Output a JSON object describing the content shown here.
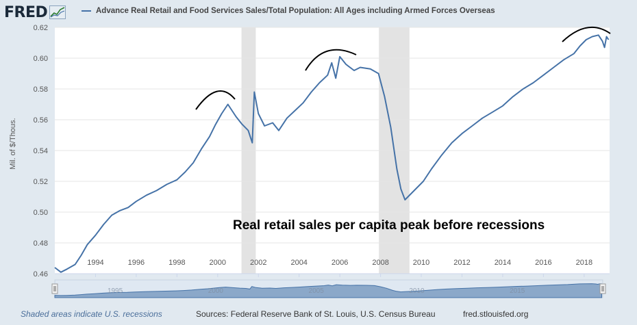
{
  "logo": {
    "text": "FRED",
    "icon": "fred-graph-icon"
  },
  "legend": {
    "label": "Advance Real Retail and Food Services Sales/Total Population: All Ages including Armed Forces Overseas",
    "color": "#4572a7"
  },
  "annotation": "Real retail sales per capita peak before recessions",
  "footer": {
    "recession_note": "Shaded areas indicate U.S. recessions",
    "sources": "Sources: Federal Reserve Bank of St. Louis, U.S. Census Bureau",
    "link": "fred.stlouisfed.org"
  },
  "navigator": {
    "tick_labels": [
      "1995",
      "2000",
      "2005",
      "2010",
      "2015"
    ]
  },
  "chart_data": {
    "type": "line",
    "title": "",
    "xlabel": "",
    "ylabel": "Mil. of $/Thous.",
    "xlim": [
      1992.0,
      2019.25
    ],
    "ylim": [
      0.46,
      0.62
    ],
    "x_ticks": [
      "1994",
      "1996",
      "1998",
      "2000",
      "2002",
      "2004",
      "2006",
      "2008",
      "2010",
      "2012",
      "2014",
      "2016",
      "2018"
    ],
    "y_ticks": [
      "0.46",
      "0.48",
      "0.50",
      "0.52",
      "0.54",
      "0.56",
      "0.58",
      "0.60",
      "0.62"
    ],
    "grid": true,
    "recessions": [
      [
        2001.17,
        2001.87
      ],
      [
        2007.92,
        2009.42
      ]
    ],
    "series": [
      {
        "color": "#4572a7",
        "x": [
          1992.0,
          1992.3,
          1992.6,
          1993.0,
          1993.3,
          1993.6,
          1994.0,
          1994.4,
          1994.8,
          1995.2,
          1995.6,
          1996.0,
          1996.5,
          1997.0,
          1997.5,
          1998.0,
          1998.4,
          1998.8,
          1999.2,
          1999.6,
          1999.9,
          2000.2,
          2000.5,
          2000.9,
          2001.2,
          2001.5,
          2001.7,
          2001.8,
          2002.0,
          2002.3,
          2002.7,
          2003.0,
          2003.4,
          2003.8,
          2004.2,
          2004.6,
          2005.0,
          2005.4,
          2005.6,
          2005.8,
          2006.0,
          2006.3,
          2006.7,
          2007.0,
          2007.5,
          2007.9,
          2008.2,
          2008.5,
          2008.8,
          2009.0,
          2009.2,
          2009.5,
          2009.8,
          2010.1,
          2010.5,
          2011.0,
          2011.5,
          2012.0,
          2012.5,
          2013.0,
          2013.5,
          2014.0,
          2014.5,
          2015.0,
          2015.5,
          2016.0,
          2016.5,
          2017.0,
          2017.5,
          2017.8,
          2018.1,
          2018.4,
          2018.7,
          2018.9,
          2019.0,
          2019.1,
          2019.2
        ],
        "y": [
          0.464,
          0.461,
          0.463,
          0.466,
          0.472,
          0.479,
          0.485,
          0.492,
          0.498,
          0.501,
          0.503,
          0.507,
          0.511,
          0.514,
          0.518,
          0.521,
          0.526,
          0.532,
          0.541,
          0.549,
          0.557,
          0.564,
          0.57,
          0.562,
          0.557,
          0.553,
          0.545,
          0.578,
          0.564,
          0.556,
          0.558,
          0.553,
          0.561,
          0.566,
          0.571,
          0.578,
          0.584,
          0.589,
          0.597,
          0.587,
          0.601,
          0.596,
          0.592,
          0.594,
          0.593,
          0.59,
          0.575,
          0.555,
          0.528,
          0.515,
          0.508,
          0.512,
          0.516,
          0.52,
          0.528,
          0.537,
          0.545,
          0.551,
          0.556,
          0.561,
          0.565,
          0.569,
          0.575,
          0.58,
          0.584,
          0.589,
          0.594,
          0.599,
          0.603,
          0.608,
          0.612,
          0.614,
          0.615,
          0.611,
          0.607,
          0.614,
          0.612
        ]
      }
    ]
  }
}
